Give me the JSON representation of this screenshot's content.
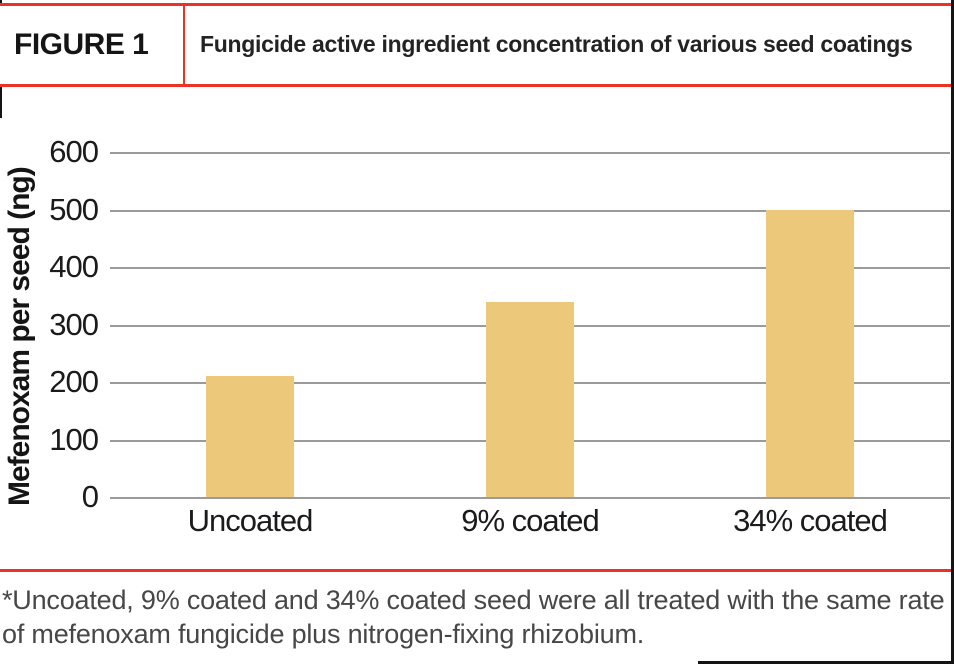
{
  "header": {
    "figure_label": "FIGURE 1",
    "title": "Fungicide active ingredient concentration of various seed coatings"
  },
  "chart_data": {
    "type": "bar",
    "categories": [
      "Uncoated",
      "9% coated",
      "34% coated"
    ],
    "values": [
      210,
      340,
      500
    ],
    "title": "Fungicide active ingredient concentration of various seed coatings",
    "xlabel": "",
    "ylabel": "Mefenoxam per seed (ng)",
    "ylim": [
      0,
      600
    ],
    "yticks": [
      0,
      100,
      200,
      300,
      400,
      500,
      600
    ],
    "grid": true,
    "legend": "none",
    "bar_color": "#ecc97a",
    "gridline_color": "#9b9b9b"
  },
  "footnote": {
    "text": "*Uncoated, 9% coated and 34% coated seed were all treated with the same rate of mefenoxam fungicide plus nitrogen-fixing rhizobium."
  },
  "colors": {
    "accent_red": "#ea3226",
    "bar_fill": "#ecc97a",
    "grid_gray": "#9b9b9b",
    "text_black": "#1b1b1b",
    "footnote_gray": "#474747"
  }
}
